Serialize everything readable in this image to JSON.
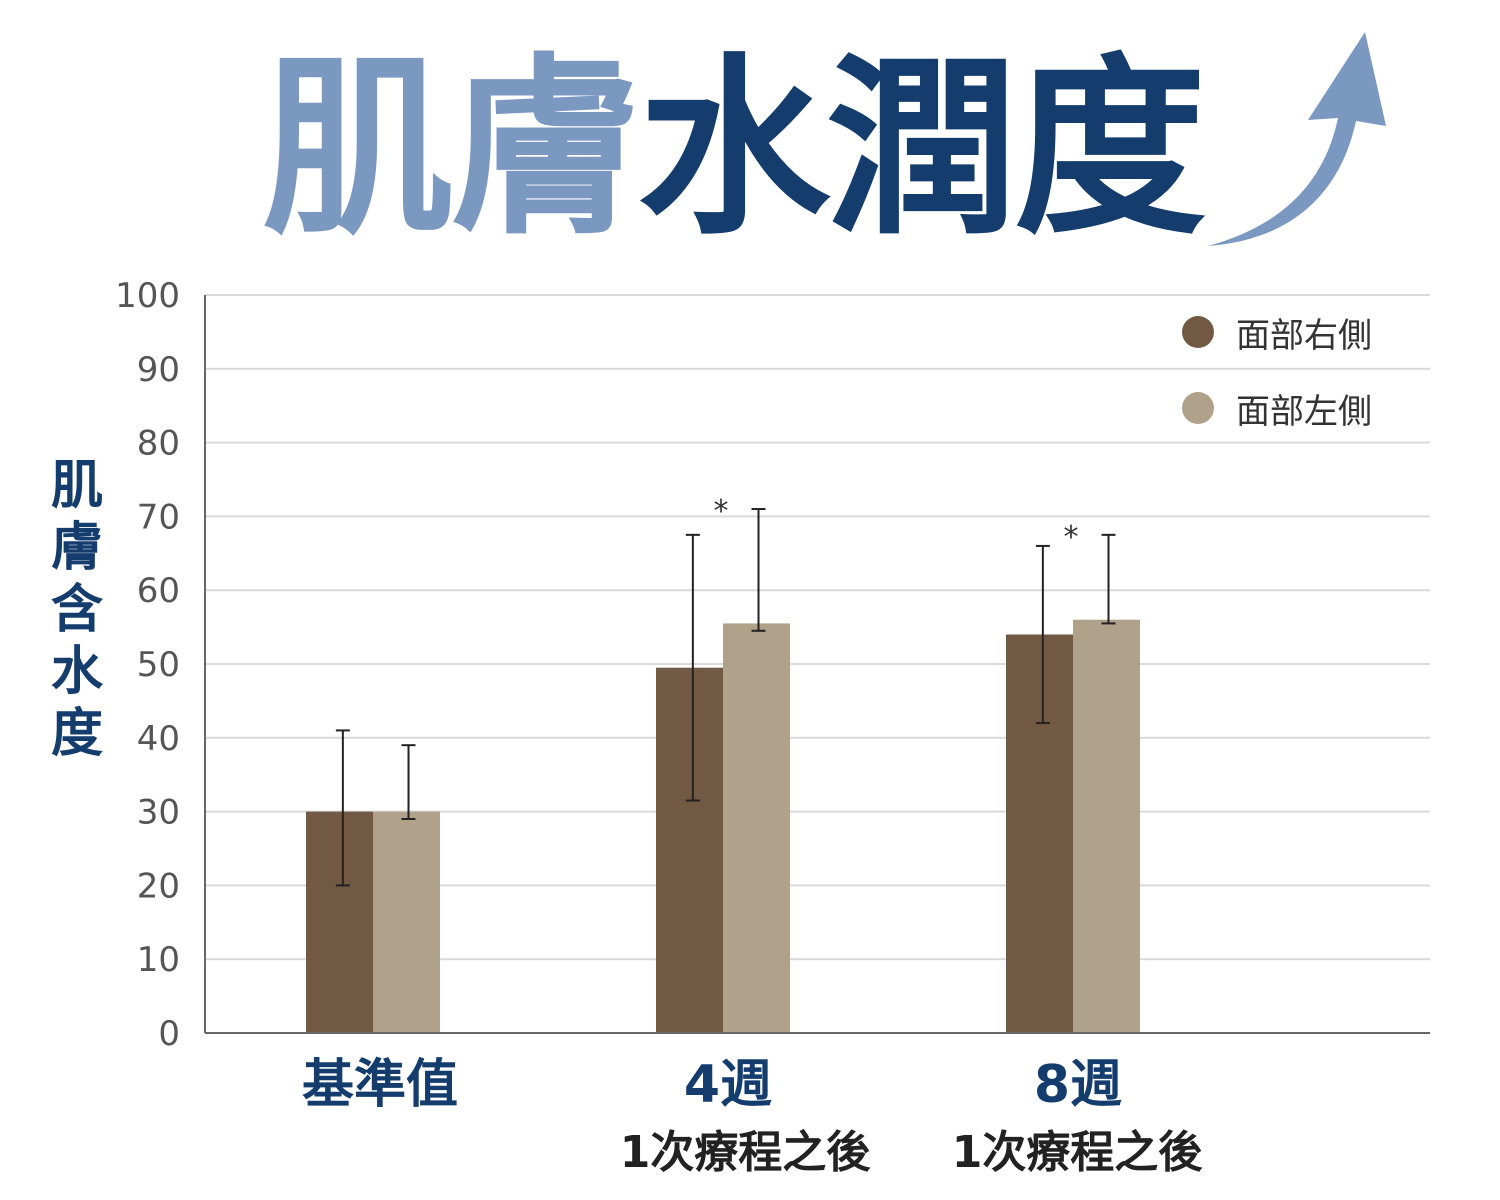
{
  "title": {
    "part1": "肌膚",
    "part2": "水潤度"
  },
  "colors": {
    "title_light": "#7b98c1",
    "title_dark": "#143d6e",
    "series_right": "#725944",
    "series_left": "#b0a18b",
    "grid": "#d9d9d9",
    "axis": "#666666"
  },
  "chart_data": {
    "type": "bar",
    "ylabel": "肌膚含水度",
    "xlabel": "",
    "ylim": [
      0,
      100
    ],
    "yticks": [
      "0",
      "10",
      "20",
      "30",
      "40",
      "50",
      "60",
      "70",
      "80",
      "90",
      "100"
    ],
    "grid": true,
    "legend_position": "top-right",
    "categories": [
      "基準值",
      "4週",
      "8週"
    ],
    "category_sublabels": [
      "",
      "1次療程之後",
      "1次療程之後"
    ],
    "series": [
      {
        "name": "面部右側",
        "values": [
          30,
          49.5,
          54
        ],
        "error_low": [
          20,
          31.5,
          42
        ],
        "error_high": [
          41,
          67.5,
          66
        ]
      },
      {
        "name": "面部左側",
        "values": [
          30,
          55.5,
          56
        ],
        "error_low": [
          29,
          54.5,
          55.5
        ],
        "error_high": [
          39,
          71,
          67.5
        ]
      }
    ],
    "annotations": [
      "",
      "*",
      "*"
    ]
  }
}
